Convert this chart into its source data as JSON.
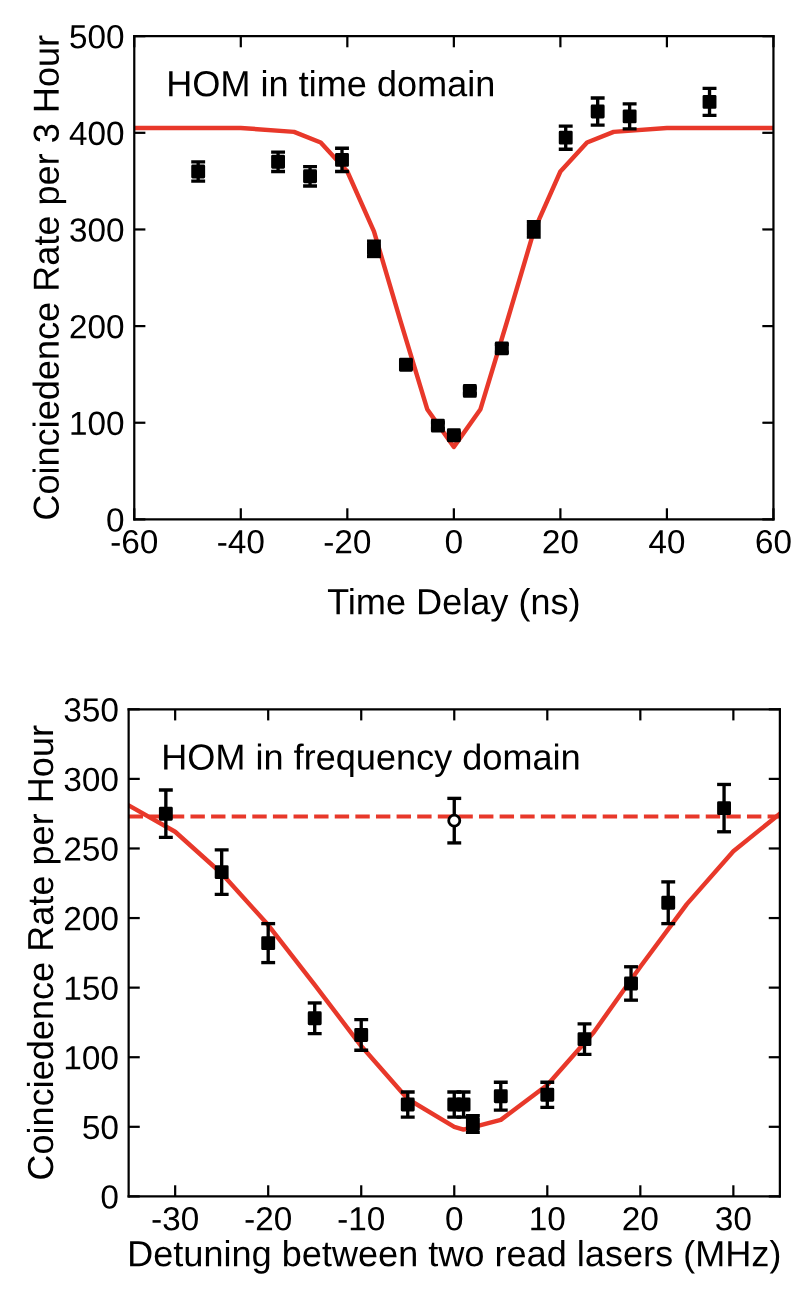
{
  "chart_data": [
    {
      "type": "scatter",
      "xlabel": "Time Delay (ns)",
      "ylabel": "Coinciedence Rate per 3 Hour",
      "annotations": [
        "HOM in time domain"
      ],
      "xlim": [
        -60,
        60
      ],
      "xticks": [
        -60,
        -40,
        -20,
        0,
        20,
        40,
        60
      ],
      "ylim": [
        0,
        500
      ],
      "yticks": [
        0,
        100,
        200,
        300,
        400,
        500
      ],
      "grid": false,
      "series": [
        {
          "marker": "square",
          "color": "#000000",
          "x": [
            -48,
            -33,
            -27,
            -21,
            -15,
            -9,
            -3,
            0,
            3,
            9,
            15,
            21,
            27,
            33,
            48
          ],
          "values": [
            360,
            370,
            355,
            372,
            280,
            160,
            97,
            87,
            133,
            177,
            300,
            395,
            422,
            417,
            432
          ],
          "errors": [
            10,
            10,
            10,
            12,
            8,
            4,
            3,
            3,
            3,
            4,
            8,
            12,
            14,
            13,
            14
          ]
        },
        {
          "type": "line",
          "marker": "none",
          "color": "#e8382a",
          "x": [
            -60,
            -40,
            -30,
            -25,
            -20,
            -15,
            -10,
            -5,
            0,
            5,
            10,
            15,
            20,
            25,
            30,
            40,
            60
          ],
          "values": [
            405,
            405,
            401,
            390,
            360,
            298,
            205,
            114,
            75,
            114,
            205,
            298,
            360,
            390,
            401,
            405,
            405
          ]
        }
      ]
    },
    {
      "type": "scatter",
      "xlabel": "Detuning between two read lasers (MHz)",
      "ylabel": "Coinciedence Rate per Hour",
      "annotations": [
        "HOM in frequency domain"
      ],
      "xlim": [
        -35,
        35
      ],
      "xticks": [
        -30,
        -20,
        -10,
        0,
        10,
        20,
        30
      ],
      "ylim": [
        0,
        350
      ],
      "yticks": [
        0,
        50,
        100,
        150,
        200,
        250,
        300,
        350
      ],
      "grid": false,
      "ref_lines": [
        {
          "axis": "y",
          "value": 273,
          "color": "#e8382a",
          "line_style": "dashed"
        }
      ],
      "series": [
        {
          "marker": "square",
          "color": "#000000",
          "x": [
            -31,
            -25,
            -20,
            -15,
            -10,
            -5,
            0,
            1,
            2,
            5,
            10,
            14,
            19,
            23,
            29
          ],
          "values": [
            275,
            233,
            182,
            128,
            116,
            66,
            66,
            66,
            52,
            72,
            73,
            113,
            153,
            211,
            279
          ],
          "errors": [
            17,
            16,
            14,
            11,
            11,
            9,
            9,
            9,
            6,
            10,
            9,
            11,
            12,
            15,
            17
          ]
        },
        {
          "marker": "circle",
          "color": "#000000",
          "x": [
            0
          ],
          "values": [
            270
          ],
          "errors": [
            16
          ]
        },
        {
          "type": "line",
          "marker": "none",
          "color": "#e8382a",
          "x": [
            -35,
            -30,
            -25,
            -20,
            -15,
            -10,
            -5,
            0,
            1,
            5,
            10,
            15,
            20,
            25,
            30,
            35
          ],
          "values": [
            281,
            262,
            232,
            195,
            152,
            108,
            70,
            50,
            48,
            55,
            80,
            118,
            165,
            210,
            248,
            275
          ]
        }
      ]
    }
  ]
}
